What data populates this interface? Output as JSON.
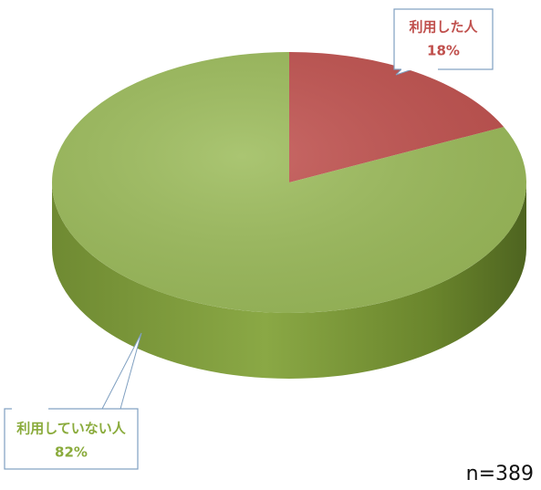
{
  "chart_data": {
    "type": "pie",
    "categories": [
      "利用した人",
      "利用していない人"
    ],
    "values": [
      18,
      82
    ],
    "value_labels": [
      "18%",
      "82%"
    ],
    "colors": [
      "#c0504d",
      "#9bbb59"
    ],
    "annotation": "n=389"
  }
}
